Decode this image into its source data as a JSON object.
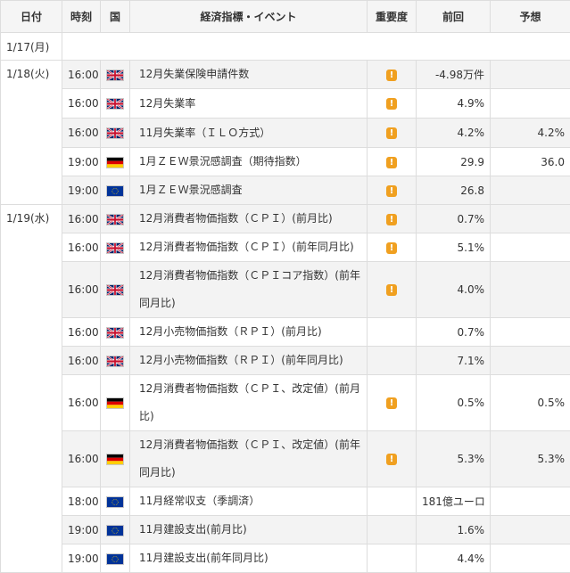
{
  "header": {
    "date": "日付",
    "time": "時刻",
    "country": "国",
    "event": "経済指標・イベント",
    "importance": "重要度",
    "previous": "前回",
    "forecast": "予想"
  },
  "colors": {
    "importance_badge": "#f0a020",
    "row_shade": "#f3f3f3",
    "border": "#dddddd"
  },
  "days": [
    {
      "date": "1/17(月)",
      "events": []
    },
    {
      "date": "1/18(火)",
      "events": [
        {
          "time": "16:00",
          "flag": "uk-flag-icon",
          "event": "12月失業保険申請件数",
          "importance": "!",
          "previous": "-4.98万件",
          "forecast": ""
        },
        {
          "time": "16:00",
          "flag": "uk-flag-icon",
          "event": "12月失業率",
          "importance": "!",
          "previous": "4.9%",
          "forecast": ""
        },
        {
          "time": "16:00",
          "flag": "uk-flag-icon",
          "event": "11月失業率（ＩＬＯ方式）",
          "importance": "!",
          "previous": "4.2%",
          "forecast": "4.2%"
        },
        {
          "time": "19:00",
          "flag": "germany-flag-icon",
          "event": "1月ＺＥＷ景況感調査（期待指数）",
          "importance": "!",
          "previous": "29.9",
          "forecast": "36.0"
        },
        {
          "time": "19:00",
          "flag": "eu-flag-icon",
          "event": "1月ＺＥＷ景況感調査",
          "importance": "!",
          "previous": "26.8",
          "forecast": ""
        }
      ]
    },
    {
      "date": "1/19(水)",
      "events": [
        {
          "time": "16:00",
          "flag": "uk-flag-icon",
          "event": "12月消費者物価指数（ＣＰＩ）(前月比)",
          "importance": "!",
          "previous": "0.7%",
          "forecast": ""
        },
        {
          "time": "16:00",
          "flag": "uk-flag-icon",
          "event": "12月消費者物価指数（ＣＰＩ）(前年同月比)",
          "importance": "!",
          "previous": "5.1%",
          "forecast": ""
        },
        {
          "time": "16:00",
          "flag": "uk-flag-icon",
          "event": "12月消費者物価指数（ＣＰＩコア指数）(前年同月比)",
          "importance": "!",
          "previous": "4.0%",
          "forecast": ""
        },
        {
          "time": "16:00",
          "flag": "uk-flag-icon",
          "event": "12月小売物価指数（ＲＰＩ）(前月比)",
          "importance": "",
          "previous": "0.7%",
          "forecast": ""
        },
        {
          "time": "16:00",
          "flag": "uk-flag-icon",
          "event": "12月小売物価指数（ＲＰＩ）(前年同月比)",
          "importance": "",
          "previous": "7.1%",
          "forecast": ""
        },
        {
          "time": "16:00",
          "flag": "germany-flag-icon",
          "event": "12月消費者物価指数（ＣＰＩ、改定値）(前月比)",
          "importance": "!",
          "previous": "0.5%",
          "forecast": "0.5%"
        },
        {
          "time": "16:00",
          "flag": "germany-flag-icon",
          "event": "12月消費者物価指数（ＣＰＩ、改定値）(前年同月比)",
          "importance": "!",
          "previous": "5.3%",
          "forecast": "5.3%"
        },
        {
          "time": "18:00",
          "flag": "eu-flag-icon",
          "event": "11月経常収支（季調済）",
          "importance": "",
          "previous": "181億ユーロ",
          "forecast": ""
        },
        {
          "time": "19:00",
          "flag": "eu-flag-icon",
          "event": "11月建設支出(前月比)",
          "importance": "",
          "previous": "1.6%",
          "forecast": ""
        },
        {
          "time": "19:00",
          "flag": "eu-flag-icon",
          "event": "11月建設支出(前年同月比)",
          "importance": "",
          "previous": "4.4%",
          "forecast": ""
        }
      ]
    }
  ]
}
